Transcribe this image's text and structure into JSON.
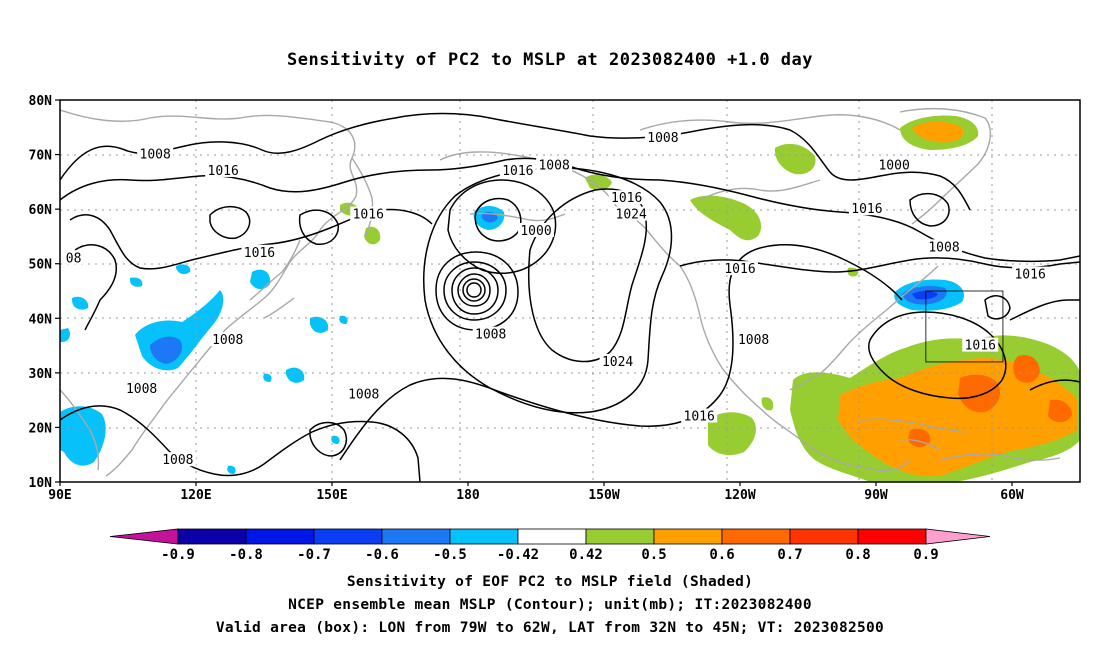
{
  "title": "Sensitivity of PC2 to MSLP at 2023082400 +1.0 day",
  "map": {
    "lat_labels": [
      "80N",
      "70N",
      "60N",
      "50N",
      "40N",
      "30N",
      "20N",
      "10N"
    ],
    "lon_labels": [
      "90E",
      "120E",
      "150E",
      "180",
      "150W",
      "120W",
      "90W",
      "60W"
    ],
    "lon_range": [
      90,
      315
    ],
    "lat_range": [
      10,
      80
    ],
    "grid": "dotted",
    "valid_box": {
      "lon": [
        -79,
        -62
      ],
      "lat": [
        32,
        45
      ]
    },
    "contour_labels": [
      {
        "text": "1008",
        "lon": 111,
        "lat": 70
      },
      {
        "text": "1016",
        "lon": 126,
        "lat": 67
      },
      {
        "text": "1016",
        "lon": 158,
        "lat": 59
      },
      {
        "text": "1016",
        "lon": 134,
        "lat": 52
      },
      {
        "text": "1016",
        "lon": 191,
        "lat": 67
      },
      {
        "text": "1008",
        "lon": 199,
        "lat": 68
      },
      {
        "text": "1008",
        "lon": 223,
        "lat": 73
      },
      {
        "text": "1000",
        "lon": 274,
        "lat": 68
      },
      {
        "text": "1016",
        "lon": 215,
        "lat": 62
      },
      {
        "text": "1024",
        "lon": 216,
        "lat": 59
      },
      {
        "text": "1016",
        "lon": 268,
        "lat": 60
      },
      {
        "text": "1008",
        "lon": 285,
        "lat": 53
      },
      {
        "text": "1016",
        "lon": 304,
        "lat": 48
      },
      {
        "text": "1016",
        "lon": 240,
        "lat": 49
      },
      {
        "text": "1000",
        "lon": 195,
        "lat": 56
      },
      {
        "text": "08",
        "lon": 93,
        "lat": 51
      },
      {
        "text": "1008",
        "lon": 185,
        "lat": 37
      },
      {
        "text": "1008",
        "lon": 127,
        "lat": 36
      },
      {
        "text": "1024",
        "lon": 213,
        "lat": 32
      },
      {
        "text": "1008",
        "lon": 243,
        "lat": 36
      },
      {
        "text": "1016",
        "lon": 293,
        "lat": 35
      },
      {
        "text": "1008",
        "lon": 108,
        "lat": 27
      },
      {
        "text": "1008",
        "lon": 157,
        "lat": 26
      },
      {
        "text": "1016",
        "lon": 231,
        "lat": 22
      },
      {
        "text": "1008",
        "lon": 116,
        "lat": 14
      }
    ]
  },
  "colorbar": {
    "labels": [
      "-0.9",
      "-0.8",
      "-0.7",
      "-0.6",
      "-0.5",
      "-0.42",
      "0.42",
      "0.5",
      "0.6",
      "0.7",
      "0.8",
      "0.9"
    ],
    "colors": [
      "#c4119a",
      "#0c00a8",
      "#0016e6",
      "#0a3ef2",
      "#1c78f4",
      "#07c2fa",
      "#ffffff",
      "#98cd32",
      "#ff9f00",
      "#ff6a00",
      "#ff3400",
      "#ff0000",
      "#ff9fcf"
    ]
  },
  "captions": {
    "line1": "Sensitivity of EOF PC2 to MSLP field (Shaded)",
    "line2": "NCEP ensemble mean MSLP (Contour); unit(mb); IT:2023082400",
    "line3": "Valid area (box): LON from 79W to 62W, LAT from 32N to 45N; VT: 2023082500"
  }
}
